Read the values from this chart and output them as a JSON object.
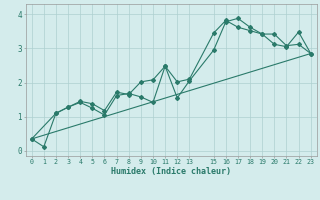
{
  "xlabel": "Humidex (Indice chaleur)",
  "ylabel": "",
  "bg_color": "#d4ecec",
  "grid_color": "#aed0d0",
  "line_color": "#2a7a6a",
  "xlim_min": -0.5,
  "xlim_max": 23.5,
  "ylim_min": -0.15,
  "ylim_max": 4.3,
  "xticks": [
    0,
    1,
    2,
    3,
    4,
    5,
    6,
    7,
    8,
    9,
    10,
    11,
    12,
    13,
    15,
    16,
    17,
    18,
    19,
    20,
    21,
    22,
    23
  ],
  "yticks": [
    0,
    1,
    2,
    3,
    4
  ],
  "line1_x": [
    0,
    1,
    2,
    3,
    4,
    5,
    6,
    7,
    8,
    9,
    10,
    11,
    12,
    13,
    15,
    16,
    17,
    18,
    19,
    20,
    21,
    22,
    23
  ],
  "line1_y": [
    0.35,
    0.12,
    1.1,
    1.28,
    1.42,
    1.25,
    1.05,
    1.62,
    1.68,
    1.58,
    1.42,
    2.48,
    1.55,
    2.05,
    2.95,
    3.78,
    3.88,
    3.62,
    3.42,
    3.12,
    3.05,
    3.48,
    2.85
  ],
  "line2_x": [
    0,
    2,
    3,
    4,
    5,
    6,
    7,
    8,
    9,
    10,
    11,
    12,
    13,
    15,
    16,
    17,
    18,
    19,
    20,
    21,
    22,
    23
  ],
  "line2_y": [
    0.35,
    1.1,
    1.28,
    1.45,
    1.38,
    1.18,
    1.72,
    1.65,
    2.02,
    2.08,
    2.48,
    2.02,
    2.1,
    3.45,
    3.82,
    3.62,
    3.52,
    3.42,
    3.42,
    3.08,
    3.12,
    2.85
  ],
  "line3_x": [
    0,
    23
  ],
  "line3_y": [
    0.35,
    2.85
  ]
}
